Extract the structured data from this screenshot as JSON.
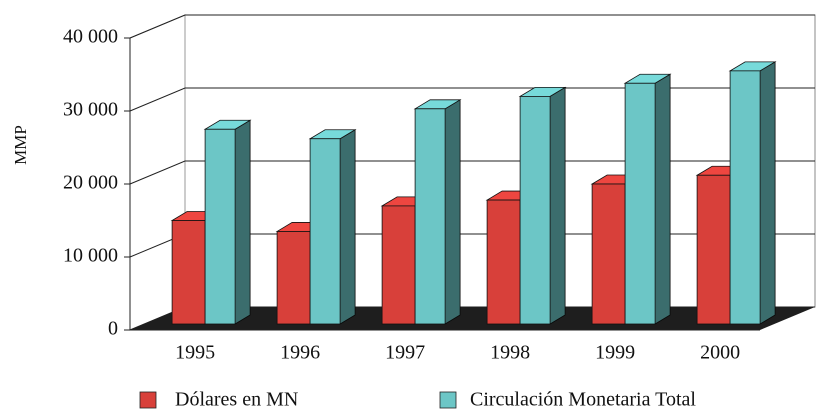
{
  "chart_data": {
    "type": "bar3d",
    "y_label": "MMP",
    "categories": [
      "1995",
      "1996",
      "1997",
      "1998",
      "1999",
      "2000"
    ],
    "series": [
      {
        "name": "Dólares en MN",
        "color": "#d8403a",
        "values": [
          15000,
          13500,
          17000,
          17800,
          20000,
          21200
        ]
      },
      {
        "name": "Circulación Monetaria Total",
        "color": "#6cc6c6",
        "values": [
          27500,
          26200,
          30300,
          32000,
          33800,
          35500
        ]
      }
    ],
    "ylim": [
      0,
      40000
    ],
    "yticks": [
      0,
      {
        "value": 10000,
        "label": "10 000"
      },
      {
        "value": 20000,
        "label": "20 000"
      },
      {
        "value": 30000,
        "label": "30 000"
      },
      {
        "value": 40000,
        "label": "40 000"
      }
    ],
    "grid": true
  }
}
